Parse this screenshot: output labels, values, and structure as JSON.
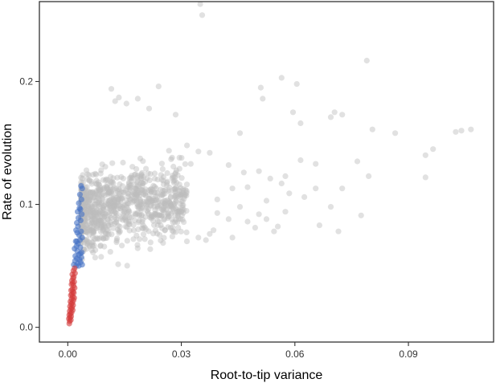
{
  "chart_data": {
    "type": "scatter",
    "title": "",
    "xlabel": "Root-to-tip variance",
    "ylabel": "Rate of evolution",
    "xlim": [
      -0.0075,
      0.1125
    ],
    "ylim": [
      -0.012,
      0.265
    ],
    "x_ticks": [
      0.0,
      0.03,
      0.06,
      0.09
    ],
    "x_tick_labels": [
      "0.00",
      "0.03",
      "0.06",
      "0.09"
    ],
    "y_ticks": [
      0.0,
      0.1,
      0.2
    ],
    "y_tick_labels": [
      "0.0",
      "0.1",
      "0.2"
    ],
    "grid": false,
    "legend": "none",
    "point_alpha": 0.45,
    "series": [
      {
        "color": "#bdbdbd",
        "x": [
          0.035,
          0.0355,
          0.079,
          0.104,
          0.0565,
          0.051,
          0.0605,
          0.0115,
          0.0135,
          0.0125,
          0.0185,
          0.024,
          0.0155,
          0.0215,
          0.0285,
          0.0455,
          0.0595,
          0.0615,
          0.0695,
          0.0705,
          0.0725,
          0.0515,
          0.0805,
          0.0965,
          0.1025,
          0.1065,
          0.0865,
          0.0945,
          0.0345,
          0.0375,
          0.0315,
          0.0295,
          0.0325,
          0.0425,
          0.0465,
          0.0535,
          0.0575,
          0.0615,
          0.0655,
          0.0765,
          0.0795,
          0.0945,
          0.0725,
          0.0565,
          0.0505,
          0.0475,
          0.0435,
          0.0395,
          0.0455,
          0.0525,
          0.0585,
          0.0625,
          0.0655,
          0.0695,
          0.0525,
          0.0575,
          0.0505,
          0.0475,
          0.0395,
          0.0715,
          0.0775,
          0.0345,
          0.0375,
          0.0425,
          0.0495,
          0.0555,
          0.0665,
          0.0545,
          0.0435,
          0.0385,
          0.0365
        ],
        "y": [
          0.263,
          0.254,
          0.217,
          0.16,
          0.203,
          0.195,
          0.198,
          0.194,
          0.187,
          0.184,
          0.186,
          0.196,
          0.182,
          0.178,
          0.173,
          0.158,
          0.175,
          0.166,
          0.171,
          0.175,
          0.173,
          0.186,
          0.161,
          0.145,
          0.159,
          0.161,
          0.158,
          0.14,
          0.143,
          0.142,
          0.148,
          0.138,
          0.133,
          0.132,
          0.126,
          0.121,
          0.123,
          0.136,
          0.133,
          0.135,
          0.123,
          0.122,
          0.113,
          0.117,
          0.127,
          0.114,
          0.113,
          0.104,
          0.098,
          0.103,
          0.109,
          0.106,
          0.113,
          0.098,
          0.088,
          0.094,
          0.092,
          0.086,
          0.093,
          0.078,
          0.091,
          0.073,
          0.076,
          0.088,
          0.081,
          0.082,
          0.083,
          0.078,
          0.073,
          0.079,
          0.071
        ]
      },
      {
        "color": "#4472c4",
        "x": [
          0.0035,
          0.0038,
          0.0032,
          0.0036,
          0.0029,
          0.0031,
          0.0026,
          0.0033,
          0.0037,
          0.0028,
          0.0034,
          0.0024,
          0.0027,
          0.0022,
          0.0025,
          0.003,
          0.0035,
          0.0038,
          0.0032,
          0.0021,
          0.0027,
          0.0023,
          0.0018,
          0.0025,
          0.0033,
          0.0037,
          0.0029,
          0.002,
          0.0024,
          0.0031,
          0.0036,
          0.0019,
          0.0026,
          0.0034,
          0.0038,
          0.0022,
          0.0029,
          0.0033,
          0.0016,
          0.0024
        ],
        "y": [
          0.115,
          0.113,
          0.108,
          0.104,
          0.101,
          0.097,
          0.094,
          0.096,
          0.092,
          0.089,
          0.087,
          0.085,
          0.082,
          0.079,
          0.077,
          0.075,
          0.078,
          0.073,
          0.071,
          0.07,
          0.068,
          0.066,
          0.064,
          0.062,
          0.065,
          0.061,
          0.059,
          0.058,
          0.056,
          0.055,
          0.057,
          0.054,
          0.052,
          0.053,
          0.051,
          0.05,
          0.05,
          0.06,
          0.051,
          0.07
        ]
      },
      {
        "color": "#d43a3a",
        "x": [
          0.0018,
          0.0015,
          0.0019,
          0.0012,
          0.0016,
          0.0014,
          0.0011,
          0.0017,
          0.0013,
          0.001,
          0.0015,
          0.0018,
          0.0012,
          0.0009,
          0.0014,
          0.0016,
          0.0011,
          0.0008,
          0.0013,
          0.0017,
          0.001,
          0.0015,
          0.0007,
          0.0012,
          0.0009,
          0.0014,
          0.0006,
          0.0011,
          0.0008,
          0.0013,
          0.0005,
          0.001,
          0.0007,
          0.0004,
          0.0009,
          0.0006,
          0.0003,
          0.0008,
          0.0005,
          0.0004
        ],
        "y": [
          0.048,
          0.046,
          0.044,
          0.043,
          0.041,
          0.04,
          0.038,
          0.037,
          0.036,
          0.035,
          0.034,
          0.032,
          0.031,
          0.03,
          0.029,
          0.028,
          0.027,
          0.026,
          0.025,
          0.024,
          0.023,
          0.022,
          0.021,
          0.02,
          0.019,
          0.018,
          0.017,
          0.016,
          0.015,
          0.014,
          0.013,
          0.012,
          0.011,
          0.01,
          0.009,
          0.008,
          0.007,
          0.006,
          0.005,
          0.003
        ]
      }
    ]
  }
}
